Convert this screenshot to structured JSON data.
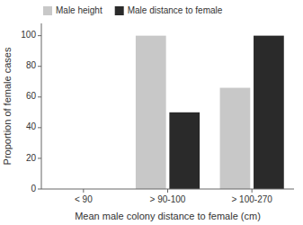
{
  "chart_data": {
    "type": "bar",
    "xlabel": "Mean male colony distance to female (cm)",
    "ylabel": "Proportion of female cases",
    "categories": [
      "< 90",
      "> 90-100",
      "> 100-270"
    ],
    "series": [
      {
        "name": "Male height",
        "color": "#c8c8c8",
        "values": [
          0,
          100,
          66
        ]
      },
      {
        "name": "Male distance to female",
        "color": "#2a2a2a",
        "values": [
          0,
          50,
          100
        ]
      }
    ],
    "ylim": [
      0,
      108
    ],
    "yticks": [
      0,
      20,
      40,
      60,
      80,
      100
    ],
    "grid": false,
    "legend": "upper left"
  }
}
